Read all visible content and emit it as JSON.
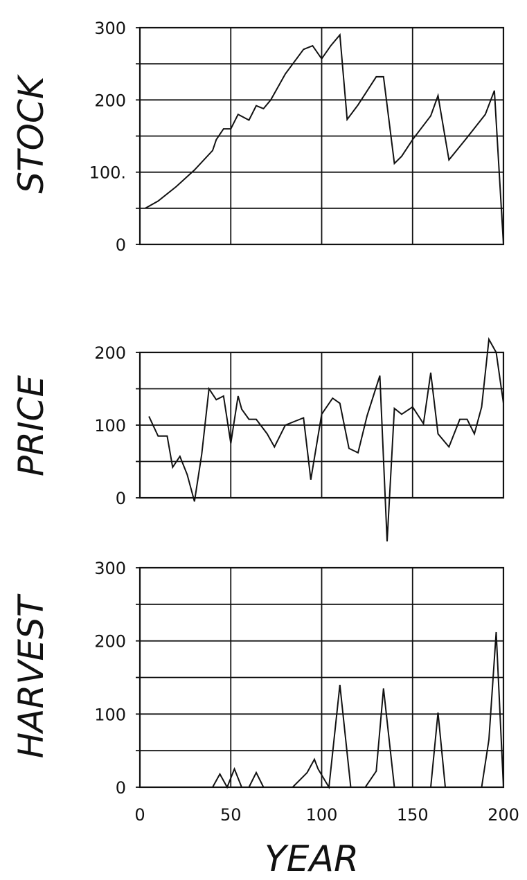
{
  "chart_data": [
    {
      "type": "line",
      "ylabel": "STOCK",
      "xlim": [
        0,
        200
      ],
      "ylim": [
        0,
        300
      ],
      "xticks": [
        0,
        50,
        100,
        150,
        200
      ],
      "yticks": [
        {
          "value": 0,
          "label": "0"
        },
        {
          "value": 100,
          "label": "100."
        },
        {
          "value": 200,
          "label": "200"
        },
        {
          "value": 300,
          "label": "300"
        }
      ],
      "grid": true,
      "x": [
        3,
        10,
        20,
        30,
        40,
        42,
        46,
        50,
        54,
        60,
        64,
        68,
        72,
        80,
        90,
        95,
        100,
        105,
        110,
        114,
        120,
        130,
        134,
        140,
        144,
        150,
        160,
        164,
        170,
        180,
        190,
        195,
        200
      ],
      "y": [
        50,
        60,
        80,
        103,
        130,
        145,
        160,
        160,
        180,
        172,
        192,
        188,
        200,
        236,
        270,
        275,
        257,
        275,
        290,
        173,
        193,
        232,
        232,
        112,
        122,
        145,
        178,
        206,
        117,
        148,
        180,
        213,
        0
      ]
    },
    {
      "type": "line",
      "ylabel": "PRICE",
      "xlim": [
        0,
        200
      ],
      "ylim": [
        0,
        200
      ],
      "xticks": [
        0,
        50,
        100,
        150,
        200
      ],
      "yticks": [
        {
          "value": 0,
          "label": "0"
        },
        {
          "value": 100,
          "label": "100"
        },
        {
          "value": 200,
          "label": "200"
        }
      ],
      "grid": true,
      "x": [
        5,
        10,
        15,
        18,
        22,
        26,
        30,
        34,
        38,
        42,
        46,
        50,
        54,
        56,
        60,
        64,
        70,
        74,
        80,
        90,
        94,
        100,
        106,
        110,
        115,
        120,
        125,
        132,
        136,
        140,
        144,
        150,
        156,
        160,
        164,
        170,
        176,
        180,
        184,
        188,
        192,
        196,
        200
      ],
      "y": [
        112,
        85,
        85,
        42,
        57,
        32,
        -5,
        60,
        150,
        135,
        140,
        75,
        140,
        122,
        108,
        108,
        88,
        70,
        100,
        110,
        25,
        115,
        137,
        130,
        68,
        62,
        113,
        168,
        -60,
        123,
        115,
        125,
        102,
        172,
        88,
        70,
        108,
        108,
        88,
        125,
        218,
        200,
        130
      ]
    },
    {
      "type": "line",
      "ylabel": "HARVEST",
      "xlabel": "YEAR",
      "xlim": [
        0,
        200
      ],
      "ylim": [
        0,
        300
      ],
      "xticks": [
        0,
        50,
        100,
        150,
        200
      ],
      "yticks": [
        {
          "value": 0,
          "label": "0"
        },
        {
          "value": 100,
          "label": "100"
        },
        {
          "value": 200,
          "label": "200"
        },
        {
          "value": 300,
          "label": "300"
        }
      ],
      "grid": true,
      "x": [
        40,
        44,
        48,
        52,
        56,
        60,
        64,
        68,
        84,
        90,
        92,
        96,
        98,
        104,
        110,
        116,
        124,
        130,
        134,
        140,
        160,
        164,
        168,
        188,
        192,
        196,
        200
      ],
      "y": [
        0,
        18,
        0,
        25,
        0,
        0,
        20,
        0,
        0,
        15,
        20,
        38,
        25,
        0,
        140,
        0,
        0,
        22,
        135,
        0,
        0,
        102,
        0,
        0,
        65,
        212,
        0
      ]
    }
  ]
}
